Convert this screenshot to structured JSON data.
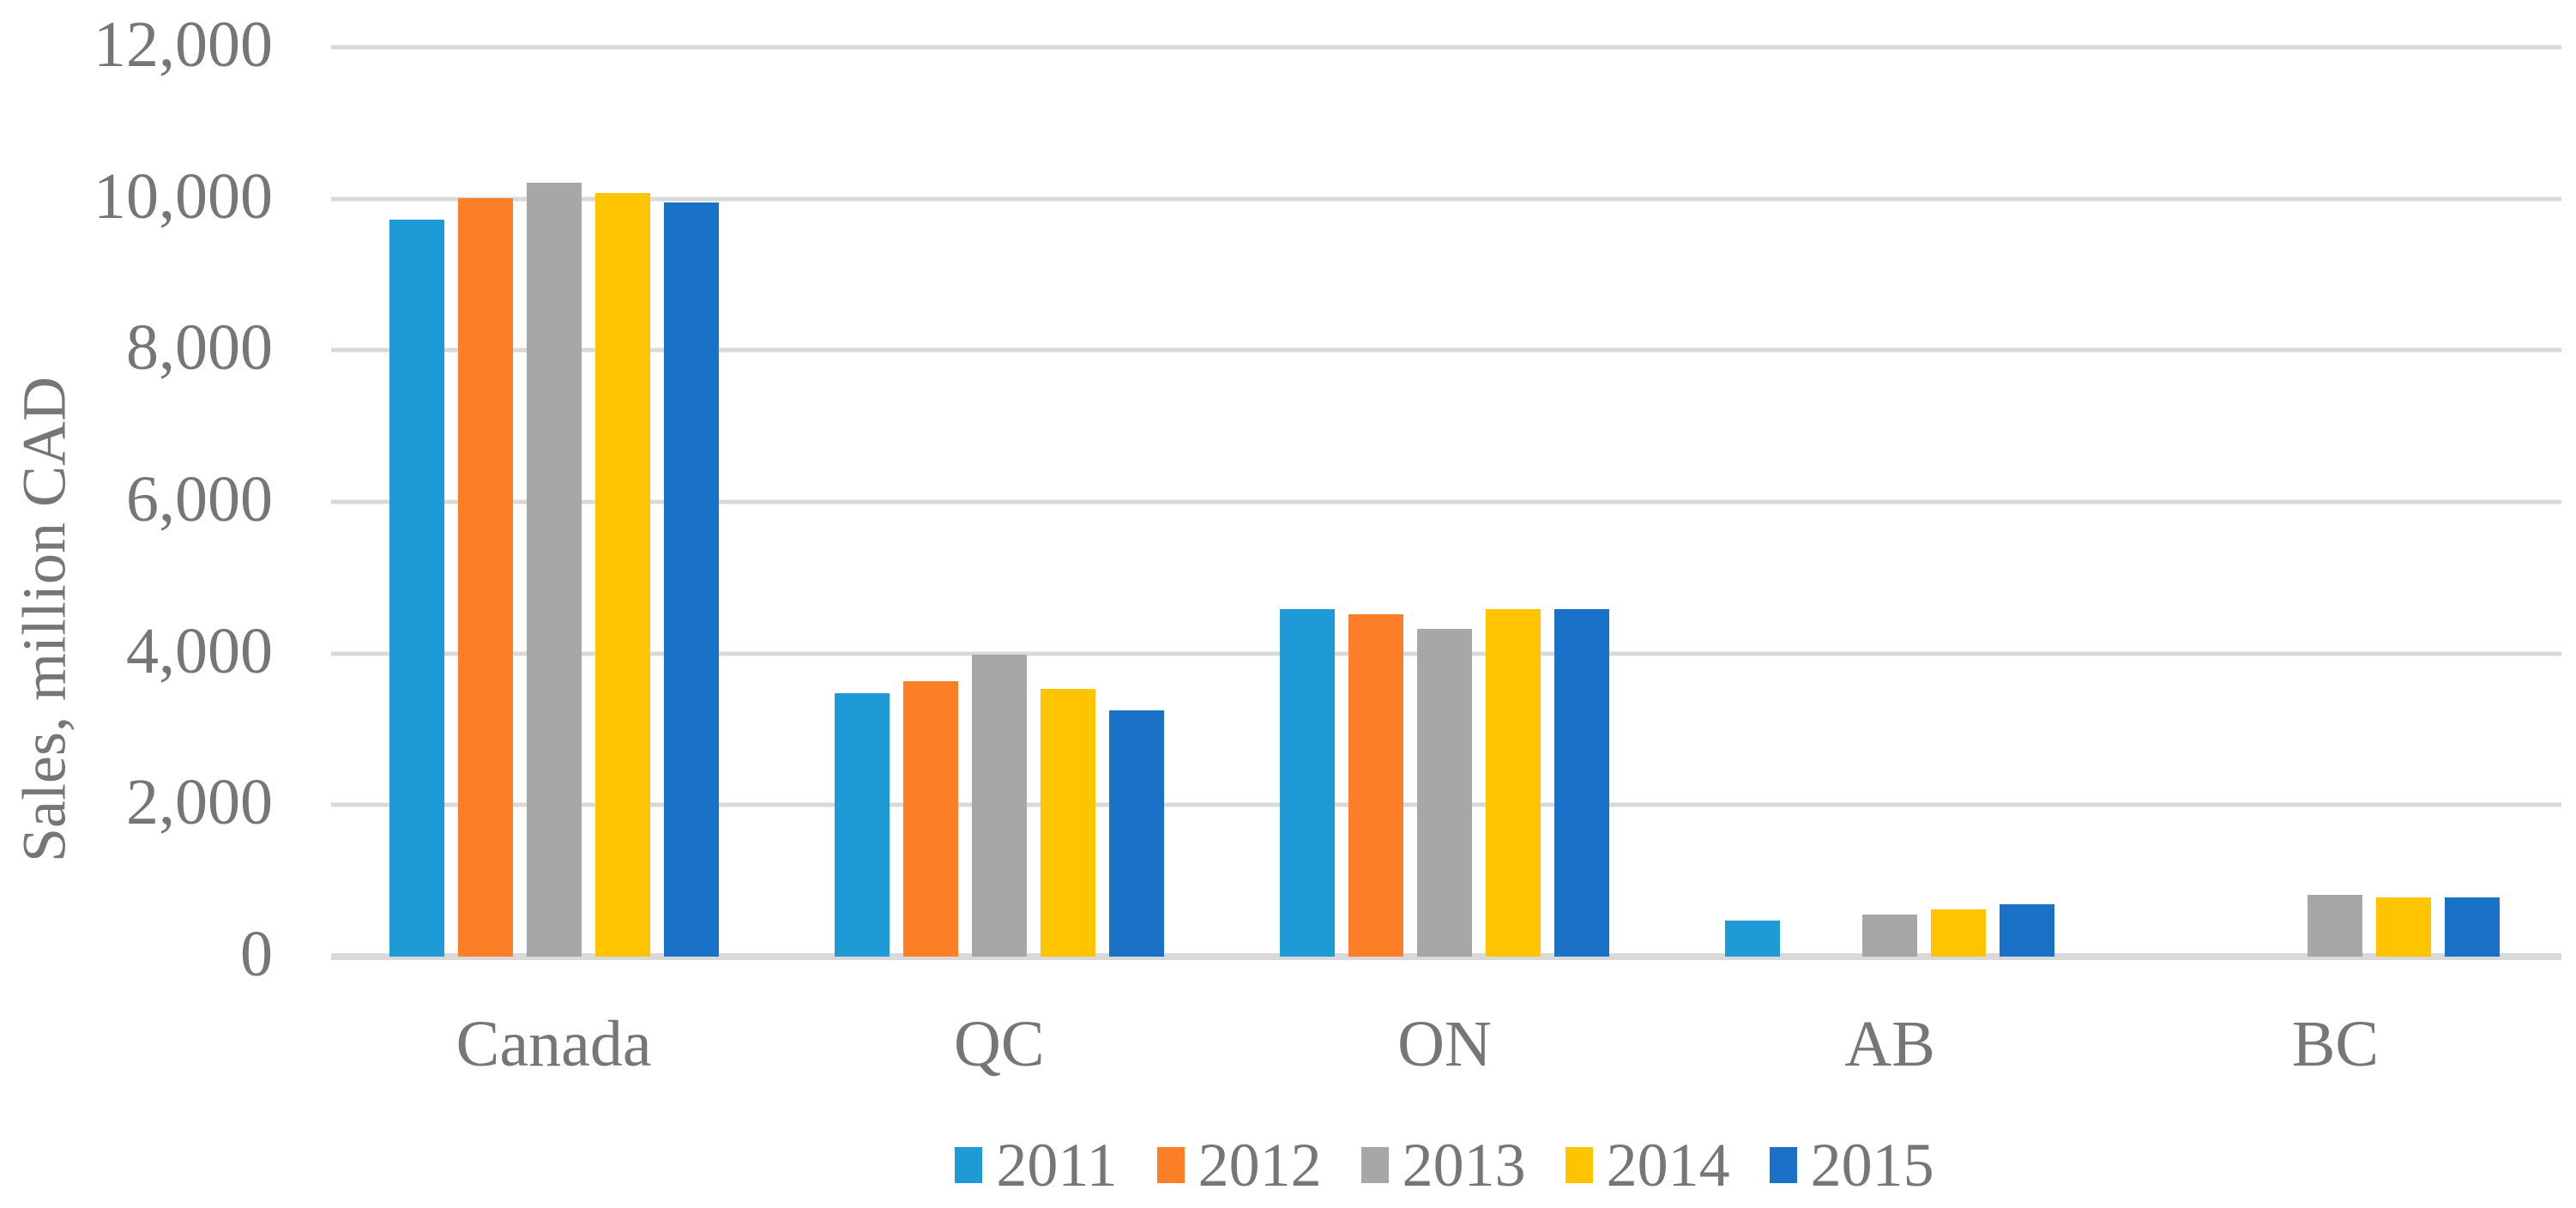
{
  "chart_data": {
    "type": "bar",
    "title": "",
    "xlabel": "",
    "ylabel": "Sales, million CAD",
    "ylim": [
      0,
      12000
    ],
    "ytick_interval": 2000,
    "ytick_labels": [
      "0",
      "2,000",
      "4,000",
      "6,000",
      "8,000",
      "10,000",
      "12,000"
    ],
    "grid": true,
    "gridline_color": "#D9D9D9",
    "axis_text_color": "#767676",
    "legend_position": "bottom",
    "categories": [
      "Canada",
      "QC",
      "ON",
      "AB",
      "BC"
    ],
    "series": [
      {
        "name": "2011",
        "color": "#1E9BD7",
        "values": [
          9720,
          3480,
          4580,
          480,
          null
        ]
      },
      {
        "name": "2012",
        "color": "#FC7E27",
        "values": [
          10010,
          3630,
          4520,
          null,
          null
        ]
      },
      {
        "name": "2013",
        "color": "#A7A7A7",
        "values": [
          10210,
          3980,
          4330,
          550,
          820
        ]
      },
      {
        "name": "2014",
        "color": "#FFC400",
        "values": [
          10080,
          3530,
          4580,
          620,
          780
        ]
      },
      {
        "name": "2015",
        "color": "#1A71C8",
        "values": [
          9950,
          3250,
          4580,
          690,
          780
        ]
      }
    ]
  }
}
